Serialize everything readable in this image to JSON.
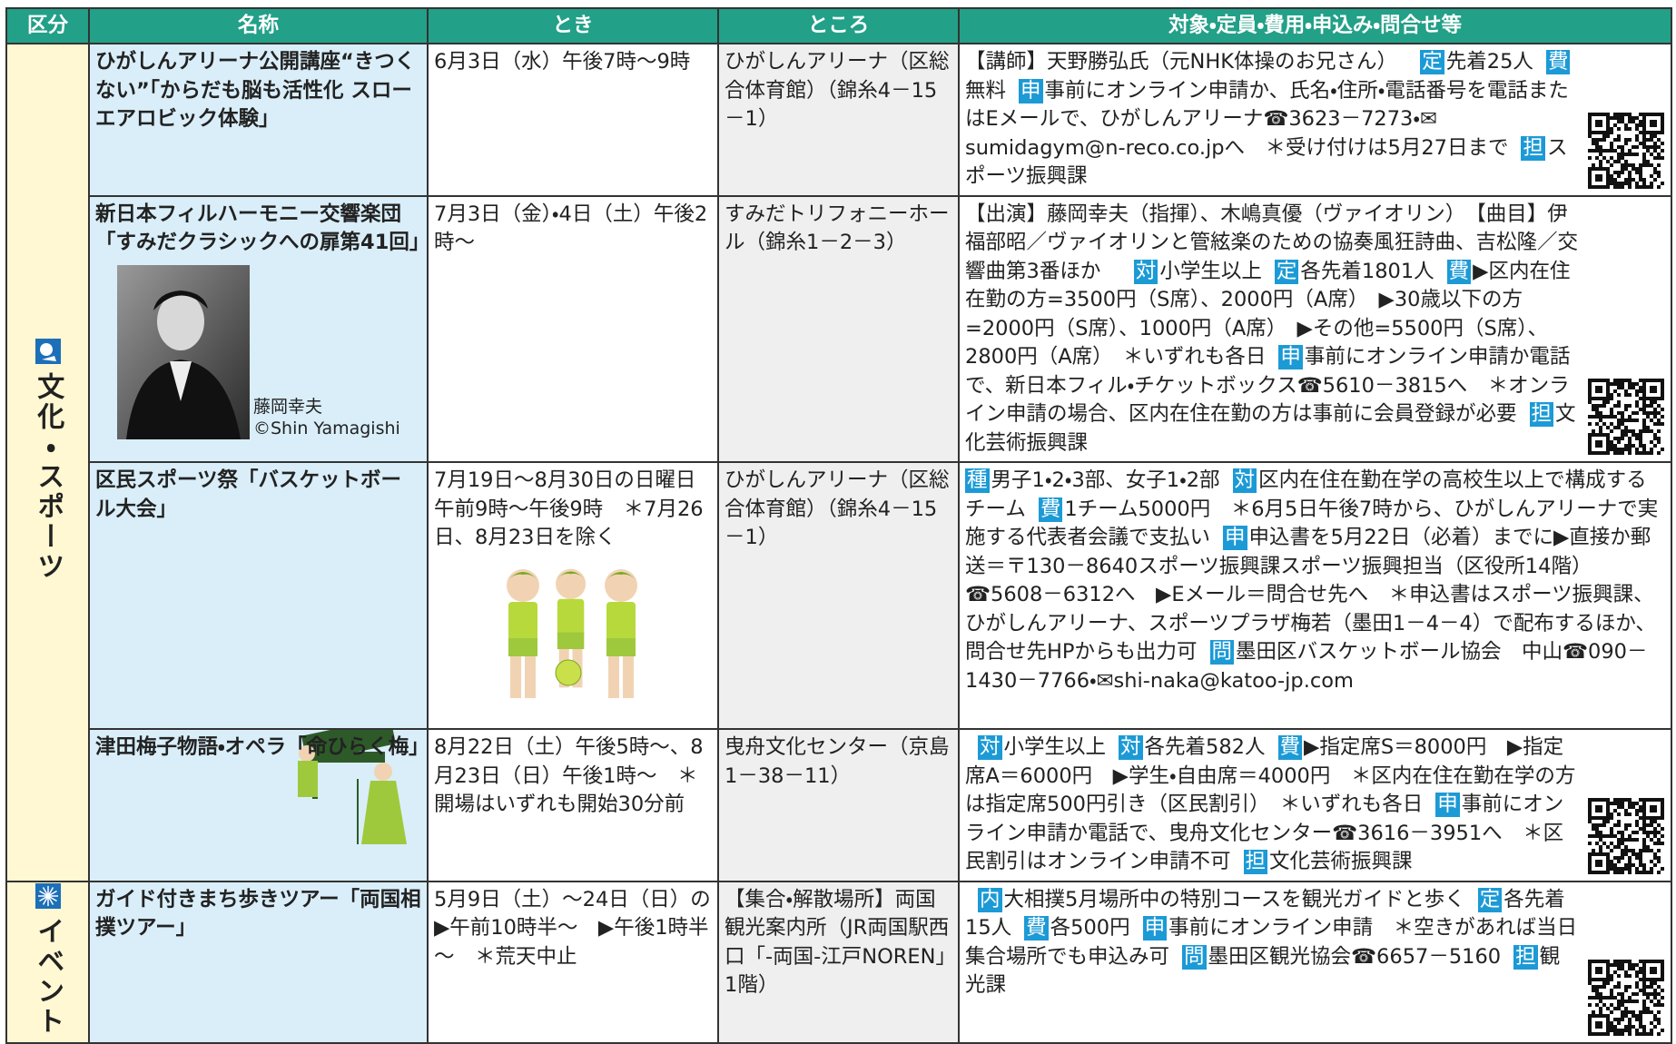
{
  "header": {
    "columns": [
      "区分",
      "名称",
      "とき",
      "ところ",
      "対象・定員・費用・申込み・問合せ等"
    ]
  },
  "categories": [
    {
      "label": "文化・スポーツ",
      "rows": [
        {
          "name": "ひがしんアリーナ公開講座“きつくない”「からだも脳も活性化 スローエアロビック体験」",
          "when": "6月3日（水）午後7時～9時",
          "where": "ひがしんアリーナ（区総合体育館）（錦糸4－15－1）",
          "details": [
            {
              "text": "【講師】天野勝弘氏（元NHK体操のお兄さん）"
            },
            {
              "badge": "定",
              "text": "先着25人"
            },
            {
              "badge": "費",
              "text": "無料"
            },
            {
              "badge": "申",
              "text": "事前にオンライン申請か、氏名・住所・電話番号を電話またはEメールで、ひがしんアリーナ☎3623－7273・✉sumidagym@n-reco.co.jpへ　＊受け付けは5月27日まで"
            },
            {
              "badge": "担",
              "text": "スポーツ振興課"
            }
          ]
        },
        {
          "name": "新日本フィルハーモニー交響楽団「すみだクラシックへの扉第41回」",
          "photo_caption": "藤岡幸夫",
          "photo_credit": "©Shin Yamagishi",
          "when": "7月3日（金）・4日（土）午後2時～",
          "where": "すみだトリフォニーホール（錦糸1－2－3）",
          "details": [
            {
              "text": "【出演】藤岡幸夫（指揮）、木嶋真優（ヴァイオリン）　【曲目】伊福部昭／ヴァイオリンと管絃楽のための協奏風狂詩曲、吉松隆／交響曲第3番ほか"
            },
            {
              "badge": "対",
              "text": "小学生以上"
            },
            {
              "badge": "定",
              "text": "各先着1801人"
            },
            {
              "badge": "費",
              "text": "▶区内在住在勤の方=3500円（S席）、2000円（A席）　▶30歳以下の方=2000円（S席）、1000円（A席）　▶その他=5500円（S席）、2800円（A席）　＊いずれも各日"
            },
            {
              "badge": "申",
              "text": "事前にオンライン申請か電話で、新日本フィル・チケットボックス☎5610－3815へ　＊オンライン申請の場合、区内在住在勤の方は事前に会員登録が必要"
            },
            {
              "badge": "担",
              "text": "文化芸術振興課"
            }
          ]
        },
        {
          "name": "区民スポーツ祭「バスケットボール大会」",
          "when": "7月19日～8月30日の日曜日午前9時～午後9時　＊7月26日、8月23日を除く",
          "where": "ひがしんアリーナ（区総合体育館）（錦糸4－15－1）",
          "details": [
            {
              "badge": "種",
              "text": "男子1・2・3部、女子1・2部"
            },
            {
              "badge": "対",
              "text": "区内在住在勤在学の高校生以上で構成するチーム"
            },
            {
              "badge": "費",
              "text": "1チーム5000円　＊6月5日午後7時から、ひがしんアリーナで実施する代表者会議で支払い"
            },
            {
              "badge": "申",
              "text": "申込書を5月22日（必着）までに▶直接か郵送＝〒130－8640スポーツ振興課スポーツ振興担当（区役所14階）☎5608－6312へ　▶Eメール＝問合せ先へ　＊申込書はスポーツ振興課、ひがしんアリーナ、スポーツプラザ梅若（墨田1－4－4）で配布するほか、問合せ先HPからも出力可"
            },
            {
              "badge": "問",
              "text": "墨田区バスケットボール協会　中山☎090－1430－7766・✉shi-naka@katoo-jp.com"
            }
          ]
        },
        {
          "name": "津田梅子物語・オペラ「命ひらく梅」",
          "when": "8月22日（土）午後5時～、8月23日（日）午後1時～　＊開場はいずれも開始30分前",
          "where": "曳舟文化センター（京島1－38－11）",
          "details": [
            {
              "badge": "対",
              "text": "小学生以上"
            },
            {
              "badge": "対",
              "text": "各先着582人"
            },
            {
              "badge": "費",
              "text": "▶指定席S＝8000円　▶指定席A＝6000円　▶学生・自由席＝4000円　＊区内在住在勤在学の方は指定席500円引き（区民割引）　＊いずれも各日"
            },
            {
              "badge": "申",
              "text": "事前にオンライン申請か電話で、曳舟文化センター☎3616－3951へ　＊区民割引はオンライン申請不可"
            },
            {
              "badge": "担",
              "text": "文化芸術振興課"
            }
          ]
        }
      ]
    },
    {
      "label": "イベント",
      "rows": [
        {
          "name": "ガイド付きまち歩きツアー「両国相撲ツアー」",
          "when": "5月9日（土）～24日（日）の▶午前10時半～　▶午後1時半～　＊荒天中止",
          "where": "【集合・解散場所】両国観光案内所（JR両国駅西口「-両国-江戸NOREN」1階）",
          "details": [
            {
              "badge": "内",
              "text": "大相撲5月場所中の特別コースを観光ガイドと歩く"
            },
            {
              "badge": "定",
              "text": "各先着15人"
            },
            {
              "badge": "費",
              "text": "各500円"
            },
            {
              "badge": "申",
              "text": "事前にオンライン申請　＊空きがあれば当日集合場所でも申込み可"
            },
            {
              "badge": "問",
              "text": "墨田区観光協会☎6657－5160"
            },
            {
              "badge": "担",
              "text": "観光課"
            }
          ]
        }
      ]
    }
  ]
}
